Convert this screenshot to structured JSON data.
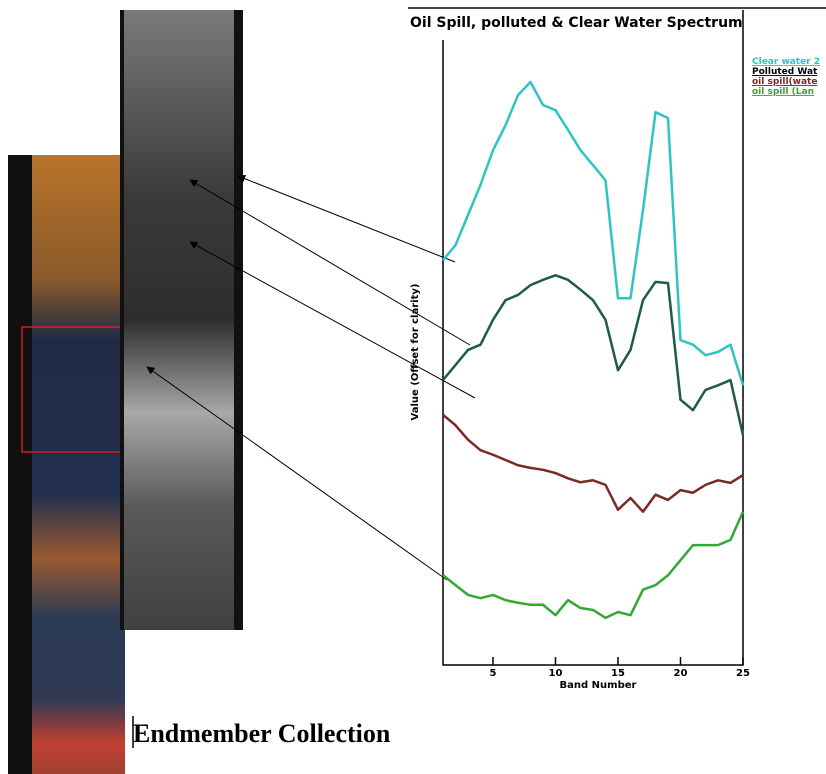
{
  "chart_data": {
    "type": "line",
    "title": "Oil Spill, polluted & Clear Water Spectrum",
    "x_label": "Band Number",
    "y_label": "Value (Offset for clarity)",
    "x": [
      1,
      2,
      3,
      4,
      5,
      6,
      7,
      8,
      9,
      10,
      11,
      12,
      13,
      14,
      15,
      16,
      17,
      18,
      19,
      20,
      21,
      22,
      23,
      24,
      25
    ],
    "xlim": [
      1,
      25
    ],
    "xticks": [
      5,
      10,
      15,
      20,
      25
    ],
    "ylim": [
      0,
      100
    ],
    "series": [
      {
        "name": "Clear water 2",
        "color": "#2ec4c4",
        "values": [
          61.8,
          64.1,
          68.7,
          73.3,
          78.6,
          82.4,
          87.0,
          89.0,
          85.5,
          84.7,
          81.7,
          78.6,
          76.3,
          74.0,
          56.0,
          56.0,
          69.5,
          84.4,
          83.5,
          49.6,
          48.9,
          47.3,
          47.8,
          48.9,
          42.7
        ]
      },
      {
        "name": "Polluted Wat",
        "color": "#1f5a4a",
        "values": [
          43.5,
          45.8,
          48.1,
          48.9,
          52.7,
          55.7,
          56.5,
          58.0,
          58.8,
          59.5,
          58.8,
          57.3,
          55.7,
          52.7,
          45.0,
          48.1,
          55.7,
          58.5,
          58.3,
          40.5,
          38.9,
          42.0,
          42.7,
          43.5,
          35.1
        ]
      },
      {
        "name": "oil spill(wate",
        "color": "#7a2a22",
        "values": [
          38.2,
          36.6,
          34.4,
          32.8,
          32.1,
          31.3,
          30.5,
          30.1,
          29.8,
          29.3,
          28.5,
          27.9,
          28.2,
          27.5,
          23.7,
          25.5,
          23.4,
          26.0,
          25.2,
          26.7,
          26.3,
          27.5,
          28.2,
          27.8,
          29.0
        ]
      },
      {
        "name": "oil spill (Lan",
        "color": "#33a833",
        "values": [
          13.7,
          12.2,
          10.7,
          10.2,
          10.7,
          9.9,
          9.5,
          9.2,
          9.2,
          7.6,
          9.9,
          8.7,
          8.4,
          7.2,
          8.1,
          7.6,
          11.5,
          12.2,
          13.7,
          16.0,
          18.3,
          18.3,
          18.3,
          19.1,
          23.4
        ]
      }
    ]
  },
  "caption": "Endmember Collection"
}
